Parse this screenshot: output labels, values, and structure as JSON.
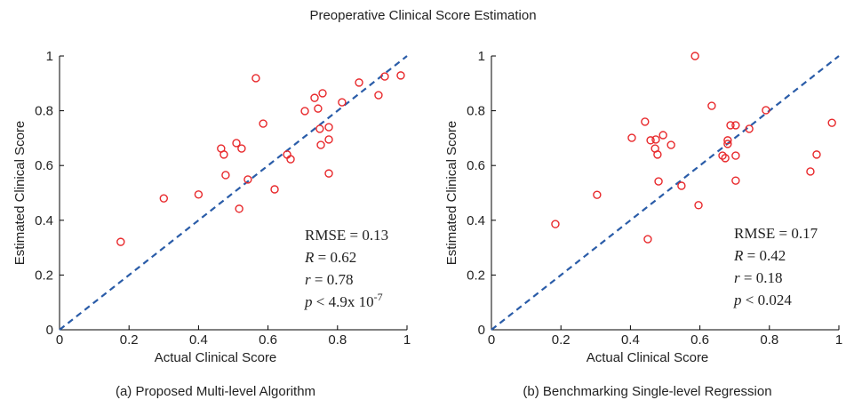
{
  "title": "Preoperative Clinical Score Estimation",
  "chart_data": [
    {
      "type": "scatter",
      "xlabel": "Actual Clinical Score",
      "ylabel": "Estimated Clinical Score",
      "caption": "(a) Proposed Multi-level Algorithm",
      "xlim": [
        0,
        1
      ],
      "ylim": [
        0,
        1
      ],
      "xticks": [
        0,
        0.2,
        0.4,
        0.6,
        0.8,
        1
      ],
      "yticks": [
        0,
        0.2,
        0.4,
        0.6,
        0.8,
        1
      ],
      "color": "#e8282b",
      "x": [
        0.176,
        0.3,
        0.4,
        0.465,
        0.473,
        0.478,
        0.509,
        0.524,
        0.517,
        0.542,
        0.565,
        0.586,
        0.619,
        0.655,
        0.665,
        0.706,
        0.734,
        0.744,
        0.757,
        0.749,
        0.752,
        0.775,
        0.775,
        0.775,
        0.813,
        0.862,
        0.918,
        0.936,
        0.982
      ],
      "y": [
        0.321,
        0.48,
        0.494,
        0.662,
        0.64,
        0.565,
        0.682,
        0.662,
        0.442,
        0.549,
        0.919,
        0.753,
        0.513,
        0.64,
        0.623,
        0.799,
        0.847,
        0.808,
        0.864,
        0.734,
        0.675,
        0.74,
        0.695,
        0.571,
        0.831,
        0.903,
        0.857,
        0.925,
        0.929
      ],
      "annotations": [
        {
          "rest": "RMSE = 0.13"
        },
        {
          "var": "R",
          "rest": "  = 0.62"
        },
        {
          "var": "r",
          "rest": " = 0.78"
        },
        {
          "var": "p",
          "rest": " < 4.9x 10",
          "sup": "-7"
        }
      ]
    },
    {
      "type": "scatter",
      "xlabel": "Actual Clinical Score",
      "ylabel": "Estimated Clinical Score",
      "caption": "(b) Benchmarking Single-level Regression",
      "xlim": [
        0,
        1
      ],
      "ylim": [
        0,
        1
      ],
      "xticks": [
        0,
        0.2,
        0.4,
        0.6,
        0.8,
        1
      ],
      "yticks": [
        0,
        0.2,
        0.4,
        0.6,
        0.8,
        1
      ],
      "color": "#e8282b",
      "x": [
        0.184,
        0.304,
        0.404,
        0.471,
        0.478,
        0.481,
        0.442,
        0.458,
        0.473,
        0.494,
        0.517,
        0.45,
        0.547,
        0.586,
        0.634,
        0.596,
        0.665,
        0.673,
        0.68,
        0.68,
        0.688,
        0.703,
        0.703,
        0.703,
        0.742,
        0.79,
        0.918,
        0.936,
        0.98
      ],
      "y": [
        0.386,
        0.493,
        0.701,
        0.662,
        0.64,
        0.542,
        0.76,
        0.692,
        0.695,
        0.711,
        0.675,
        0.331,
        0.526,
        1.0,
        0.818,
        0.455,
        0.636,
        0.627,
        0.692,
        0.679,
        0.747,
        0.747,
        0.636,
        0.545,
        0.734,
        0.802,
        0.578,
        0.64,
        0.756
      ],
      "annotations": [
        {
          "rest": "RMSE = 0.17"
        },
        {
          "var": "R",
          "rest": "  = 0.42"
        },
        {
          "var": "r",
          "rest": " = 0.18"
        },
        {
          "var": "p",
          "rest": " < 0.024"
        }
      ]
    }
  ]
}
